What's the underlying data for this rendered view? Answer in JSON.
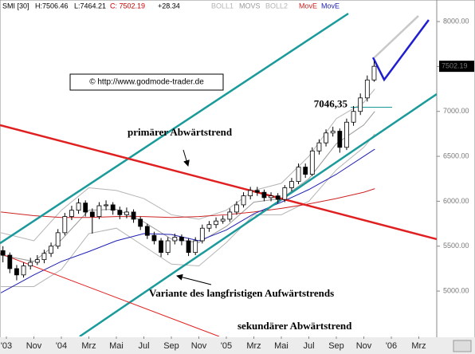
{
  "chart_data": {
    "type": "candlestick",
    "header": {
      "symbol": "SMI [30]",
      "high": "H:7506.46",
      "low": "L:7464.21",
      "close": "C: 7502.19",
      "change": "+28.34"
    },
    "copyright": "© http://www.godmode-trader.de",
    "annotations": {
      "primary": "primärer Abwärtstrend",
      "variant": "Variante des langfristigen Aufwärtstrends",
      "secondary": "sekundärer Abwärtstrend"
    },
    "level": {
      "value": 7046.35,
      "label": "7046,35",
      "x": [
        25.04,
        28.06
      ],
      "color": "#1a9a9a"
    },
    "xlim": [
      -0.4638,
      31.3043
    ],
    "ylim": [
      4495,
      8240
    ],
    "xticks": [
      {
        "value": 0,
        "label": "'03"
      },
      {
        "value": 2,
        "label": "Nov"
      },
      {
        "value": 4,
        "label": "'04"
      },
      {
        "value": 6,
        "label": "Mrz"
      },
      {
        "value": 8,
        "label": "Mai"
      },
      {
        "value": 10,
        "label": "Jul"
      },
      {
        "value": 12,
        "label": "Sep"
      },
      {
        "value": 14,
        "label": "Nov"
      },
      {
        "value": 16,
        "label": "'05"
      },
      {
        "value": 18,
        "label": "Mrz"
      },
      {
        "value": 20,
        "label": "Mai"
      },
      {
        "value": 22,
        "label": "Jul"
      },
      {
        "value": 24,
        "label": "Sep"
      },
      {
        "value": 26,
        "label": "Nov"
      },
      {
        "value": 28,
        "label": "'06"
      },
      {
        "value": 30,
        "label": "Mrz"
      }
    ],
    "yticks": [
      {
        "value": 5000,
        "label": "5000.00"
      },
      {
        "value": 5500,
        "label": "5500.00"
      },
      {
        "value": 6000,
        "label": "6000.00"
      },
      {
        "value": 6500,
        "label": "6500.00"
      },
      {
        "value": 7000,
        "label": "7000.00"
      },
      {
        "value": 7500,
        "label": "7500.00"
      },
      {
        "value": 8000,
        "label": "8000.00"
      }
    ],
    "up_color": "#ffffff",
    "down_color": "#000000",
    "candles": {
      "x": [
        -0.25,
        0.25,
        0.75,
        1.25,
        1.75,
        2.25,
        2.75,
        3.25,
        3.75,
        4.25,
        4.75,
        5.25,
        5.75,
        6.25,
        6.75,
        7.25,
        7.75,
        8.25,
        8.75,
        9.25,
        9.75,
        10.25,
        10.75,
        11.25,
        11.75,
        12.25,
        12.75,
        13.25,
        13.75,
        14.25,
        14.75,
        15.25,
        15.75,
        16.25,
        16.75,
        17.25,
        17.75,
        18.25,
        18.75,
        19.25,
        19.75,
        20.25,
        20.75,
        21.25,
        21.75,
        22.25,
        22.75,
        23.25,
        23.75,
        24.25,
        24.75,
        25.25,
        25.75,
        26.25,
        26.75
      ],
      "open": [
        5450,
        5400,
        5250,
        5180,
        5280,
        5320,
        5350,
        5420,
        5500,
        5650,
        5830,
        5900,
        5980,
        5880,
        5830,
        5950,
        5960,
        5900,
        5850,
        5880,
        5800,
        5720,
        5620,
        5560,
        5430,
        5560,
        5600,
        5560,
        5430,
        5560,
        5700,
        5740,
        5780,
        5800,
        5880,
        5960,
        6060,
        6120,
        6100,
        6040,
        6060,
        6020,
        6150,
        6220,
        6380,
        6300,
        6560,
        6650,
        6760,
        6780,
        6600,
        6880,
        7000,
        7150,
        7350
      ],
      "high": [
        5500,
        5430,
        5290,
        5320,
        5370,
        5400,
        5460,
        5540,
        5690,
        5870,
        5950,
        6030,
        6010,
        5920,
        5990,
        6010,
        5990,
        5940,
        5930,
        5910,
        5830,
        5750,
        5660,
        5590,
        5600,
        5640,
        5630,
        5590,
        5600,
        5740,
        5780,
        5820,
        5840,
        5920,
        6000,
        6100,
        6160,
        6160,
        6130,
        6100,
        6090,
        6180,
        6260,
        6420,
        6420,
        6600,
        6690,
        6800,
        6830,
        6810,
        6920,
        7060,
        7200,
        7400,
        7560
      ],
      "low": [
        5320,
        5200,
        5120,
        5150,
        5240,
        5290,
        5310,
        5380,
        5470,
        5620,
        5790,
        5860,
        5830,
        5640,
        5800,
        5900,
        5850,
        5800,
        5810,
        5760,
        5680,
        5580,
        5520,
        5380,
        5400,
        5520,
        5510,
        5390,
        5400,
        5530,
        5660,
        5700,
        5750,
        5770,
        5850,
        5930,
        6020,
        6060,
        6000,
        6000,
        5980,
        5990,
        6110,
        6190,
        6260,
        6280,
        6520,
        6610,
        6720,
        6540,
        6570,
        6840,
        6960,
        7110,
        7330
      ],
      "close": [
        5400,
        5250,
        5180,
        5280,
        5320,
        5350,
        5420,
        5500,
        5650,
        5830,
        5900,
        5980,
        5880,
        5830,
        5950,
        5960,
        5900,
        5850,
        5880,
        5800,
        5720,
        5620,
        5560,
        5430,
        5560,
        5600,
        5560,
        5430,
        5560,
        5700,
        5740,
        5780,
        5800,
        5880,
        5960,
        6060,
        6120,
        6100,
        6040,
        6060,
        6020,
        6150,
        6220,
        6380,
        6300,
        6560,
        6650,
        6760,
        6780,
        6600,
        6880,
        7000,
        7150,
        7350,
        7502.19
      ]
    },
    "indicator_x": [
      -0.4,
      2,
      4,
      6,
      8,
      10,
      12,
      14,
      16,
      18,
      20,
      22,
      24,
      26,
      26.8
    ],
    "series": [
      {
        "name": "BOLL1",
        "color": "#b4b4b4",
        "values": [
          5650,
          5560,
          5900,
          6150,
          6120,
          6030,
          5850,
          5800,
          5900,
          6120,
          6200,
          6500,
          6920,
          7100,
          7250
        ]
      },
      {
        "name": "MOVS",
        "color": "#999999",
        "values": [
          5400,
          5330,
          5570,
          5900,
          5910,
          5770,
          5580,
          5540,
          5720,
          5990,
          6030,
          6250,
          6640,
          6850,
          7000
        ]
      },
      {
        "name": "BOLL2",
        "color": "#b4b4b4",
        "values": [
          5050,
          5050,
          5240,
          5640,
          5700,
          5500,
          5300,
          5280,
          5540,
          5850,
          5850,
          6000,
          6350,
          6600,
          6750
        ]
      },
      {
        "name": "MovE",
        "color": "#cc2222",
        "values": [
          5880,
          5840,
          5820,
          5820,
          5830,
          5830,
          5820,
          5830,
          5850,
          5880,
          5920,
          5970,
          6030,
          6100,
          6140
        ]
      },
      {
        "name": "MovE",
        "color": "#1f1fb4",
        "values": [
          4980,
          5180,
          5330,
          5440,
          5560,
          5640,
          5630,
          5560,
          5680,
          5860,
          5990,
          6130,
          6300,
          6500,
          6580
        ]
      }
    ],
    "trendlines": [
      {
        "color": "#1a9a9a",
        "weight": "bold",
        "x": [
          -0.46,
          24.87
        ],
        "y": [
          5533,
          8089
        ]
      },
      {
        "color": "#1a9a9a",
        "weight": "bold",
        "x": [
          5.33,
          31.3
        ],
        "y": [
          4495,
          7193
        ]
      },
      {
        "color": "#e02020",
        "weight": "bold",
        "x": [
          -0.46,
          31.3
        ],
        "y": [
          6847,
          5578
        ]
      },
      {
        "color": "#e02020",
        "weight": "normal",
        "x": [
          -0.46,
          15.48
        ],
        "y": [
          5418,
          4495
        ]
      },
      {
        "color": "#c8c8c8",
        "weight": "bold",
        "x": [
          26.78,
          29.97
        ],
        "y": [
          7601,
          8063
        ]
      },
      {
        "color": "#1f1fd0",
        "weight": "bold",
        "x": [
          26.67,
          27.48,
          30.72
        ],
        "y": [
          7601,
          7353,
          8018
        ]
      }
    ]
  }
}
